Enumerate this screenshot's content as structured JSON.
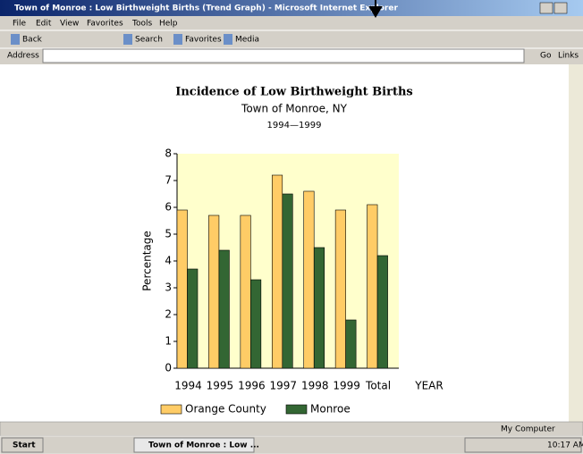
{
  "window": {
    "title": "Town of Monroe : Low Birthweight Births (Trend Graph) - Microsoft Internet Explorer",
    "menu": [
      "File",
      "Edit",
      "View",
      "Favorites",
      "Tools",
      "Help"
    ],
    "toolbar": [
      "Back",
      "Search",
      "Favorites",
      "Media"
    ],
    "address_label": "Address",
    "go": "Go",
    "links": "Links",
    "status": "My Computer",
    "taskbar": {
      "start": "Start",
      "task": "Town of Monroe : Low ...",
      "clock": "10:17 AM"
    }
  },
  "chart_data": {
    "type": "bar",
    "title": "Incidence of Low Birthweight Births",
    "subtitle": "Town of Monroe, NY",
    "period": "1994—1999",
    "categories": [
      "1994",
      "1995",
      "1996",
      "1997",
      "1998",
      "1999",
      "Total"
    ],
    "series": [
      {
        "name": "Orange County",
        "color": "#ffcc66",
        "values": [
          5.9,
          5.7,
          5.7,
          7.2,
          6.6,
          5.9,
          6.1
        ]
      },
      {
        "name": "Monroe",
        "color": "#336633",
        "values": [
          3.7,
          4.4,
          3.3,
          6.5,
          4.5,
          1.8,
          4.2
        ]
      }
    ],
    "xlabel": "YEAR",
    "ylabel": "Percentage",
    "ylim": [
      0,
      8
    ],
    "yticks": [
      0,
      1,
      2,
      3,
      4,
      5,
      6,
      7,
      8
    ],
    "plot_background": "#ffffcc"
  }
}
